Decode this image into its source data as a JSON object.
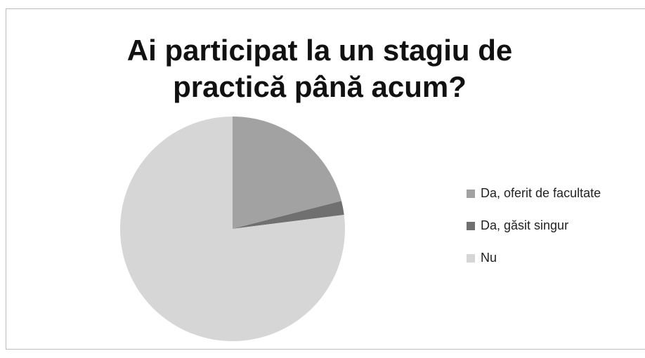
{
  "chart_data": {
    "type": "pie",
    "title": "Ai participat la un stagiu de practică până acum?",
    "categories": [
      "Da, oferit de facultate",
      "Da, găsit singur",
      "Nu"
    ],
    "values": [
      21,
      2,
      77
    ],
    "colors": [
      "#a2a2a2",
      "#707070",
      "#d6d6d6"
    ],
    "legend": "right"
  }
}
